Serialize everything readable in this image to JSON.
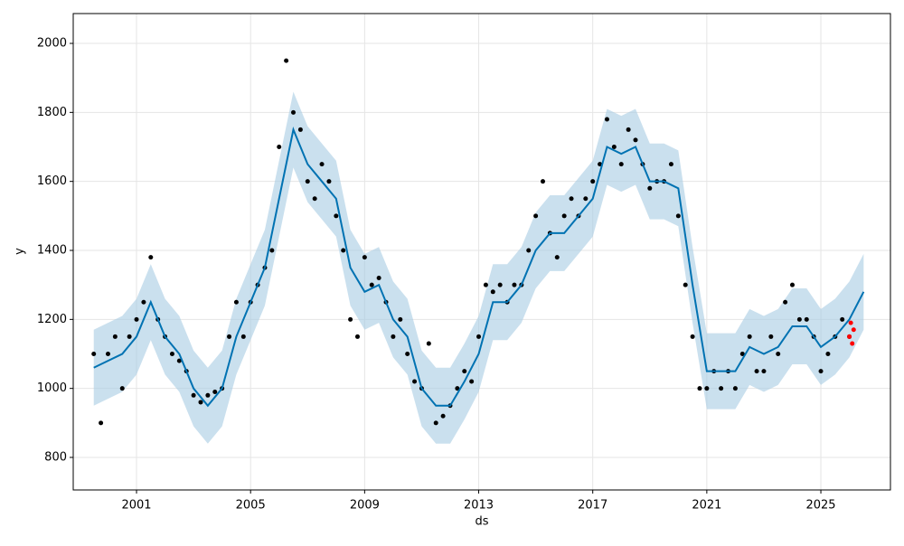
{
  "chart_data": {
    "type": "forecast",
    "x_label": "ds",
    "y_label": "y",
    "xlim": [
      1998.78,
      2027.44
    ],
    "xticks": [
      2001,
      2005,
      2009,
      2013,
      2017,
      2021,
      2025
    ],
    "ylim": [
      705.7,
      2086.5
    ],
    "yticks": [
      800,
      1000,
      1200,
      1400,
      1600,
      1800,
      2000
    ],
    "grid": true,
    "interval": {
      "color": "#a6cbe3",
      "x": [
        1999.5,
        2000,
        2000.5,
        2001,
        2001.5,
        2002,
        2002.5,
        2003,
        2003.5,
        2004,
        2004.5,
        2005,
        2005.5,
        2006,
        2006.5,
        2007,
        2007.5,
        2008,
        2008.5,
        2009,
        2009.5,
        2010,
        2010.5,
        2011,
        2011.5,
        2012,
        2012.5,
        2013,
        2013.5,
        2014,
        2014.5,
        2015,
        2015.5,
        2016,
        2016.5,
        2017,
        2017.5,
        2018,
        2018.5,
        2019,
        2019.5,
        2020,
        2020.5,
        2021,
        2021.5,
        2022,
        2022.5,
        2023,
        2023.5,
        2024,
        2024.5,
        2025,
        2025.5,
        2026,
        2026.5
      ],
      "lower": [
        950,
        970,
        990,
        1040,
        1140,
        1040,
        990,
        890,
        840,
        890,
        1040,
        1140,
        1240,
        1440,
        1640,
        1540,
        1490,
        1440,
        1240,
        1170,
        1190,
        1090,
        1040,
        890,
        840,
        840,
        910,
        990,
        1140,
        1140,
        1190,
        1290,
        1340,
        1340,
        1390,
        1440,
        1590,
        1570,
        1590,
        1490,
        1490,
        1470,
        1190,
        940,
        940,
        940,
        1010,
        990,
        1010,
        1070,
        1070,
        1010,
        1040,
        1090,
        1170
      ],
      "upper": [
        1170,
        1190,
        1210,
        1260,
        1360,
        1260,
        1210,
        1110,
        1060,
        1110,
        1260,
        1360,
        1460,
        1660,
        1860,
        1760,
        1710,
        1660,
        1460,
        1390,
        1410,
        1310,
        1260,
        1110,
        1060,
        1060,
        1130,
        1210,
        1360,
        1360,
        1410,
        1510,
        1560,
        1560,
        1610,
        1660,
        1810,
        1790,
        1810,
        1710,
        1710,
        1690,
        1410,
        1160,
        1160,
        1160,
        1230,
        1210,
        1230,
        1290,
        1290,
        1230,
        1260,
        1310,
        1390
      ]
    },
    "forecast": {
      "color": "#0072b2",
      "x": [
        1999.5,
        2000,
        2000.5,
        2001,
        2001.5,
        2002,
        2002.5,
        2003,
        2003.5,
        2004,
        2004.5,
        2005,
        2005.5,
        2006,
        2006.5,
        2007,
        2007.5,
        2008,
        2008.5,
        2009,
        2009.5,
        2010,
        2010.5,
        2011,
        2011.5,
        2012,
        2012.5,
        2013,
        2013.5,
        2014,
        2014.5,
        2015,
        2015.5,
        2016,
        2016.5,
        2017,
        2017.5,
        2018,
        2018.5,
        2019,
        2019.5,
        2020,
        2020.5,
        2021,
        2021.5,
        2022,
        2022.5,
        2023,
        2023.5,
        2024,
        2024.5,
        2025,
        2025.5,
        2026,
        2026.5
      ],
      "values": [
        1060,
        1080,
        1100,
        1150,
        1250,
        1150,
        1100,
        1000,
        950,
        1000,
        1150,
        1250,
        1350,
        1550,
        1750,
        1650,
        1600,
        1550,
        1350,
        1280,
        1300,
        1200,
        1150,
        1000,
        950,
        950,
        1020,
        1100,
        1250,
        1250,
        1300,
        1400,
        1450,
        1450,
        1500,
        1550,
        1700,
        1680,
        1700,
        1600,
        1600,
        1580,
        1300,
        1050,
        1050,
        1050,
        1120,
        1100,
        1120,
        1180,
        1180,
        1120,
        1150,
        1200,
        1280
      ]
    },
    "observed": {
      "color": "#000000",
      "x": [
        1999.5,
        1999.75,
        2000,
        2000.25,
        2000.5,
        2000.75,
        2001,
        2001.25,
        2001.5,
        2001.75,
        2002,
        2002.25,
        2002.5,
        2002.75,
        2003,
        2003.25,
        2003.5,
        2003.75,
        2004,
        2004.25,
        2004.5,
        2004.75,
        2005,
        2005.25,
        2005.5,
        2005.75,
        2006,
        2006.25,
        2006.5,
        2006.75,
        2007,
        2007.25,
        2007.5,
        2007.75,
        2008,
        2008.25,
        2008.5,
        2008.75,
        2009,
        2009.25,
        2009.5,
        2009.75,
        2010,
        2010.25,
        2010.5,
        2010.75,
        2011,
        2011.25,
        2011.5,
        2011.75,
        2012,
        2012.25,
        2012.5,
        2012.75,
        2013,
        2013.25,
        2013.5,
        2013.75,
        2014,
        2014.25,
        2014.5,
        2014.75,
        2015,
        2015.25,
        2015.5,
        2015.75,
        2016,
        2016.25,
        2016.5,
        2016.75,
        2017,
        2017.25,
        2017.5,
        2017.75,
        2018,
        2018.25,
        2018.5,
        2018.75,
        2019,
        2019.25,
        2019.5,
        2019.75,
        2020,
        2020.25,
        2020.5,
        2020.75,
        2021,
        2021.25,
        2021.5,
        2021.75,
        2022,
        2022.25,
        2022.5,
        2022.75,
        2023,
        2023.25,
        2023.5,
        2023.75,
        2024,
        2024.25,
        2024.5,
        2024.75,
        2025,
        2025.25,
        2025.5,
        2025.75,
        2026
      ],
      "values": [
        1100,
        900,
        1100,
        1150,
        1000,
        1150,
        1200,
        1250,
        1380,
        1200,
        1150,
        1100,
        1080,
        1050,
        980,
        960,
        980,
        990,
        1000,
        1150,
        1250,
        1150,
        1250,
        1300,
        1350,
        1400,
        1700,
        1950,
        1800,
        1750,
        1600,
        1550,
        1650,
        1600,
        1500,
        1400,
        1200,
        1150,
        1380,
        1300,
        1320,
        1250,
        1150,
        1200,
        1100,
        1020,
        1000,
        1130,
        900,
        920,
        950,
        1000,
        1050,
        1020,
        1150,
        1300,
        1280,
        1300,
        1250,
        1300,
        1300,
        1400,
        1500,
        1600,
        1450,
        1380,
        1500,
        1550,
        1500,
        1550,
        1600,
        1650,
        1780,
        1700,
        1650,
        1750,
        1720,
        1650,
        1580,
        1600,
        1600,
        1650,
        1500,
        1300,
        1150,
        1000,
        1000,
        1050,
        1000,
        1050,
        1000,
        1100,
        1150,
        1050,
        1050,
        1150,
        1100,
        1250,
        1300,
        1200,
        1200,
        1150,
        1050,
        1100,
        1150,
        1200,
        1150
      ]
    },
    "holdout": {
      "color": "#ff0000",
      "x": [
        2026.0,
        2026.05,
        2026.1,
        2026.15
      ],
      "values": [
        1150,
        1190,
        1130,
        1170
      ]
    }
  }
}
